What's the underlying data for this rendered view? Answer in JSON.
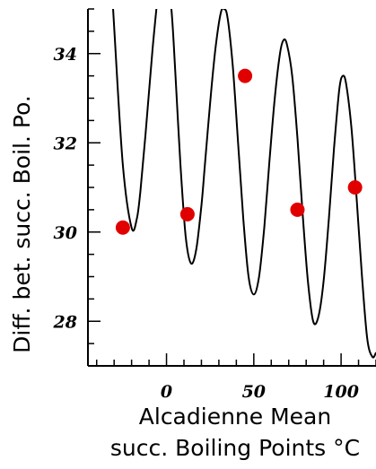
{
  "chart_data": {
    "type": "line",
    "title": "",
    "xlabel_lines": [
      "Alcadienne Mean",
      "succ. Boiling Points °C"
    ],
    "ylabel": "Diff. bet. succ. Boil. Po.",
    "xlim": [
      -45,
      120
    ],
    "ylim": [
      27,
      35
    ],
    "x_ticks": [
      0,
      50,
      100
    ],
    "x_tick_labels": [
      "0",
      "50",
      "100"
    ],
    "y_ticks": [
      28,
      30,
      32,
      34
    ],
    "y_tick_labels": [
      "28",
      "30",
      "32",
      "34"
    ],
    "grid": false,
    "series": [
      {
        "kind": "curve",
        "color": "#000000",
        "x": [
          -35,
          -30,
          -25,
          -20,
          -17,
          -15,
          -12,
          -8,
          -5,
          -3,
          0,
          3,
          5,
          8,
          11,
          14,
          17,
          20,
          22,
          25,
          28,
          31,
          33,
          35,
          38,
          41,
          44,
          47,
          50,
          53,
          56,
          59,
          62,
          65,
          67,
          69,
          72,
          75,
          78,
          81,
          84,
          87,
          90,
          93,
          96,
          99,
          101,
          103,
          106,
          109,
          112,
          115,
          118,
          120
        ],
        "y": [
          38.0,
          34.6,
          31.5,
          30.1,
          30.3,
          30.9,
          32.2,
          34.1,
          35.3,
          36.0,
          36.0,
          34.9,
          33.6,
          31.5,
          29.9,
          29.3,
          29.6,
          30.6,
          31.5,
          32.9,
          34.1,
          34.9,
          35.0,
          34.8,
          33.7,
          32.0,
          30.3,
          29.0,
          28.6,
          29.0,
          30.1,
          31.6,
          33.0,
          34.0,
          34.3,
          34.2,
          33.5,
          32.1,
          30.4,
          28.9,
          28.0,
          28.1,
          28.9,
          30.3,
          31.9,
          33.2,
          33.5,
          33.3,
          32.3,
          30.7,
          29.0,
          27.6,
          27.2,
          27.3
        ]
      },
      {
        "kind": "scatter",
        "color": "#e10000",
        "x": [
          -25,
          12,
          45,
          75,
          108
        ],
        "y": [
          30.1,
          30.4,
          33.5,
          30.5,
          31.0
        ]
      }
    ]
  }
}
